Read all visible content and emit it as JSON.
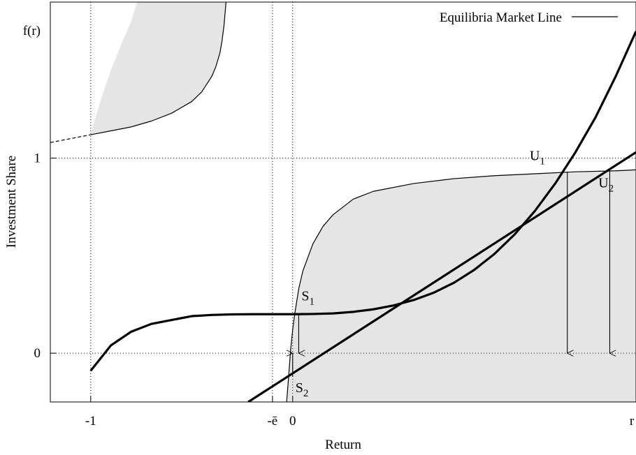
{
  "chart_data": {
    "type": "line",
    "title": "",
    "xlabel": "Return",
    "ylabel": "Investment Share",
    "xlim": [
      -1.2,
      1.7
    ],
    "ylim": [
      -0.25,
      1.8
    ],
    "grid": false,
    "legend": {
      "placement": "top-right",
      "entries": [
        "Equilibria Market Line"
      ]
    },
    "x_ticks": [
      {
        "value": -1,
        "label": "-1"
      },
      {
        "value": -0.1,
        "label": "-ē"
      },
      {
        "value": 0,
        "label": "0"
      },
      {
        "value": 1.7,
        "label": "r"
      }
    ],
    "y_ticks": [
      {
        "value": 1.7,
        "label": "f(r)"
      },
      {
        "value": 1,
        "label": "1"
      },
      {
        "value": 0,
        "label": "0"
      }
    ],
    "reference_lines": {
      "vertical": [
        -1,
        -0.1,
        0
      ],
      "horizontal": [
        1,
        0
      ]
    },
    "series": [
      {
        "name": "Equilibria Market Line",
        "style": "thick",
        "x": [
          -0.22,
          1.7
        ],
        "y": [
          -0.25,
          1.03
        ]
      },
      {
        "style": "thick",
        "x": [
          -1,
          -0.9,
          -0.8,
          -0.7,
          -0.6,
          -0.5,
          -0.4,
          -0.3,
          -0.2,
          -0.1,
          0,
          0.1,
          0.2,
          0.3,
          0.4,
          0.5,
          0.6,
          0.7,
          0.8,
          0.9,
          1.0,
          1.1,
          1.2,
          1.3,
          1.4,
          1.5,
          1.6,
          1.7
        ],
        "y": [
          -0.09,
          0.04,
          0.11,
          0.15,
          0.17,
          0.19,
          0.196,
          0.199,
          0.2,
          0.2,
          0.2,
          0.201,
          0.204,
          0.212,
          0.225,
          0.245,
          0.273,
          0.311,
          0.362,
          0.428,
          0.51,
          0.61,
          0.73,
          0.87,
          1.03,
          1.21,
          1.42,
          1.65
        ]
      },
      {
        "style": "thin",
        "x": [
          -0.03,
          -0.02,
          -0.01,
          0.0,
          0.01,
          0.03,
          0.05,
          0.1,
          0.15,
          0.2,
          0.3,
          0.4,
          0.6,
          0.8,
          1.0,
          1.2,
          1.4,
          1.6,
          1.7
        ],
        "y": [
          -0.25,
          -0.12,
          0.02,
          0.12,
          0.2,
          0.33,
          0.42,
          0.56,
          0.65,
          0.71,
          0.79,
          0.83,
          0.87,
          0.895,
          0.91,
          0.92,
          0.93,
          0.935,
          0.94
        ]
      },
      {
        "style": "thin",
        "x": [
          -1,
          -0.9,
          -0.8,
          -0.7,
          -0.6,
          -0.5,
          -0.45,
          -0.4,
          -0.38,
          -0.36,
          -0.35,
          -0.34,
          -0.33
        ],
        "y": [
          1.12,
          1.14,
          1.16,
          1.19,
          1.23,
          1.29,
          1.34,
          1.42,
          1.47,
          1.54,
          1.6,
          1.68,
          1.8
        ]
      },
      {
        "style": "dashed",
        "x": [
          -1.2,
          -1
        ],
        "y": [
          1.08,
          1.12
        ]
      }
    ],
    "shaded_regions": [
      {
        "x": [
          -1,
          -0.95,
          -0.9,
          -0.85,
          -0.8,
          -0.77
        ],
        "y_lower_curve": [
          1.12,
          1.3,
          1.45,
          1.58,
          1.7,
          1.8
        ]
      },
      {
        "bounded_by": "thin curve right of 0 and bottom axis"
      }
    ],
    "annotations": [
      {
        "text": "S",
        "sub": "1",
        "x": 0.03,
        "y": 0.27
      },
      {
        "text": "S",
        "sub": "2",
        "x": 0.0,
        "y": -0.2
      },
      {
        "text": "U",
        "sub": "1",
        "x": 1.16,
        "y": 0.99
      },
      {
        "text": "U",
        "sub": "2",
        "x": 1.5,
        "y": 0.85
      }
    ],
    "arrows": [
      {
        "from": [
          0.03,
          0.2
        ],
        "to": [
          0.03,
          0.0
        ]
      },
      {
        "from": [
          0.0,
          -0.12
        ],
        "to": [
          0.0,
          0.0
        ]
      },
      {
        "from": [
          1.36,
          0.93
        ],
        "to": [
          1.36,
          0.0
        ]
      },
      {
        "from": [
          1.57,
          0.94
        ],
        "to": [
          1.57,
          0.0
        ]
      }
    ]
  }
}
